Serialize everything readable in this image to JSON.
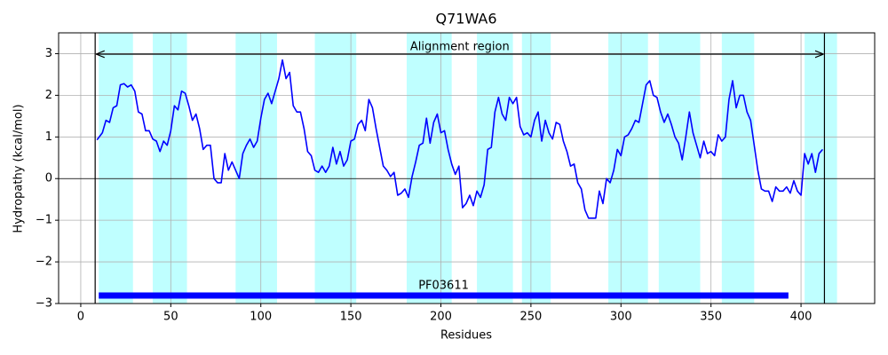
{
  "chart_data": {
    "type": "line",
    "title": "Q71WA6",
    "xlabel": "Residues",
    "ylabel": "Hydropathy (kcal/mol)",
    "xlim": [
      -12.3,
      440.9
    ],
    "ylim": [
      -3,
      3.5
    ],
    "xticks": [
      0,
      50,
      100,
      150,
      200,
      250,
      300,
      350,
      400
    ],
    "yticks": [
      {
        "value": -3,
        "label": "−3"
      },
      {
        "value": -2,
        "label": "−2"
      },
      {
        "value": -1,
        "label": "−1"
      },
      0,
      1,
      2,
      3
    ],
    "grid": true,
    "color": "#0000ff",
    "region_color": "#00ffff",
    "domain_color": "#0000ff",
    "regions": [
      {
        "start": 10,
        "end": 29
      },
      {
        "start": 40,
        "end": 59
      },
      {
        "start": 86,
        "end": 109
      },
      {
        "start": 130,
        "end": 153
      },
      {
        "start": 181,
        "end": 206
      },
      {
        "start": 220,
        "end": 240
      },
      {
        "start": 245,
        "end": 261
      },
      {
        "start": 293,
        "end": 315
      },
      {
        "start": 321,
        "end": 344
      },
      {
        "start": 356,
        "end": 374
      },
      {
        "start": 402,
        "end": 420
      }
    ],
    "alignment_region": {
      "label": "Alignment region",
      "start": 8,
      "end": 413
    },
    "domains": [
      {
        "name": "PF03611",
        "start": 10,
        "end": 393
      }
    ],
    "x": [
      9,
      12,
      14,
      16,
      18,
      20,
      22,
      24,
      26,
      28,
      30,
      32,
      34,
      36,
      38,
      40,
      42,
      44,
      46,
      48,
      50,
      52,
      54,
      56,
      58,
      60,
      62,
      64,
      66,
      68,
      70,
      72,
      74,
      76,
      78,
      80,
      82,
      84,
      86,
      88,
      90,
      92,
      94,
      96,
      98,
      100,
      102,
      104,
      106,
      108,
      110,
      112,
      114,
      116,
      118,
      120,
      122,
      124,
      126,
      128,
      130,
      132,
      134,
      136,
      138,
      140,
      142,
      144,
      146,
      148,
      150,
      152,
      154,
      156,
      158,
      160,
      162,
      164,
      166,
      168,
      170,
      172,
      174,
      176,
      178,
      180,
      182,
      184,
      186,
      188,
      190,
      192,
      194,
      196,
      198,
      200,
      202,
      204,
      206,
      208,
      210,
      212,
      214,
      216,
      218,
      220,
      222,
      224,
      226,
      228,
      230,
      232,
      234,
      236,
      238,
      240,
      242,
      244,
      246,
      248,
      250,
      252,
      254,
      256,
      258,
      260,
      262,
      264,
      266,
      268,
      270,
      272,
      274,
      276,
      278,
      280,
      282,
      284,
      286,
      288,
      290,
      292,
      294,
      296,
      298,
      300,
      302,
      304,
      306,
      308,
      310,
      312,
      314,
      316,
      318,
      320,
      322,
      324,
      326,
      328,
      330,
      332,
      334,
      336,
      338,
      340,
      342,
      344,
      346,
      348,
      350,
      352,
      354,
      356,
      358,
      360,
      362,
      364,
      366,
      368,
      370,
      372,
      374,
      376,
      378,
      380,
      382,
      384,
      386,
      388,
      390,
      392,
      394,
      396,
      398,
      400,
      402,
      404,
      406,
      408,
      410,
      412
    ],
    "values": [
      0.93,
      1.1,
      1.4,
      1.35,
      1.7,
      1.75,
      2.25,
      2.28,
      2.2,
      2.25,
      2.1,
      1.6,
      1.55,
      1.15,
      1.15,
      0.95,
      0.9,
      0.65,
      0.9,
      0.8,
      1.15,
      1.75,
      1.65,
      2.1,
      2.05,
      1.75,
      1.4,
      1.55,
      1.2,
      0.7,
      0.8,
      0.8,
      0.0,
      -0.1,
      -0.1,
      0.6,
      0.2,
      0.4,
      0.2,
      0.0,
      0.6,
      0.8,
      0.95,
      0.75,
      0.9,
      1.45,
      1.9,
      2.05,
      1.8,
      2.1,
      2.4,
      2.85,
      2.4,
      2.55,
      1.75,
      1.6,
      1.6,
      1.2,
      0.65,
      0.55,
      0.2,
      0.15,
      0.3,
      0.15,
      0.3,
      0.75,
      0.35,
      0.65,
      0.3,
      0.45,
      0.9,
      0.95,
      1.3,
      1.4,
      1.15,
      1.9,
      1.7,
      1.2,
      0.75,
      0.3,
      0.2,
      0.05,
      0.15,
      -0.4,
      -0.35,
      -0.25,
      -0.45,
      0.05,
      0.4,
      0.8,
      0.85,
      1.45,
      0.85,
      1.35,
      1.55,
      1.1,
      1.15,
      0.7,
      0.35,
      0.1,
      0.3,
      -0.7,
      -0.6,
      -0.4,
      -0.65,
      -0.3,
      -0.45,
      -0.15,
      0.7,
      0.75,
      1.6,
      1.95,
      1.55,
      1.4,
      1.95,
      1.8,
      1.95,
      1.25,
      1.05,
      1.1,
      1.0,
      1.4,
      1.6,
      0.9,
      1.4,
      1.1,
      0.95,
      1.35,
      1.3,
      0.9,
      0.65,
      0.3,
      0.35,
      -0.1,
      -0.25,
      -0.75,
      -0.95,
      -0.95,
      -0.95,
      -0.3,
      -0.6,
      0.0,
      -0.1,
      0.2,
      0.7,
      0.55,
      1.0,
      1.05,
      1.2,
      1.4,
      1.35,
      1.8,
      2.25,
      2.35,
      2.0,
      1.95,
      1.6,
      1.35,
      1.55,
      1.3,
      1.0,
      0.85,
      0.45,
      1.0,
      1.6,
      1.1,
      0.8,
      0.5,
      0.9,
      0.6,
      0.65,
      0.55,
      1.05,
      0.9,
      1.0,
      1.9,
      2.35,
      1.7,
      2.0,
      2.0,
      1.6,
      1.4,
      0.8,
      0.2,
      -0.25,
      -0.3,
      -0.3,
      -0.55,
      -0.2,
      -0.3,
      -0.3,
      -0.2,
      -0.35,
      -0.05,
      -0.3,
      -0.4,
      0.6,
      0.35,
      0.6,
      0.15,
      0.6,
      0.7
    ]
  }
}
